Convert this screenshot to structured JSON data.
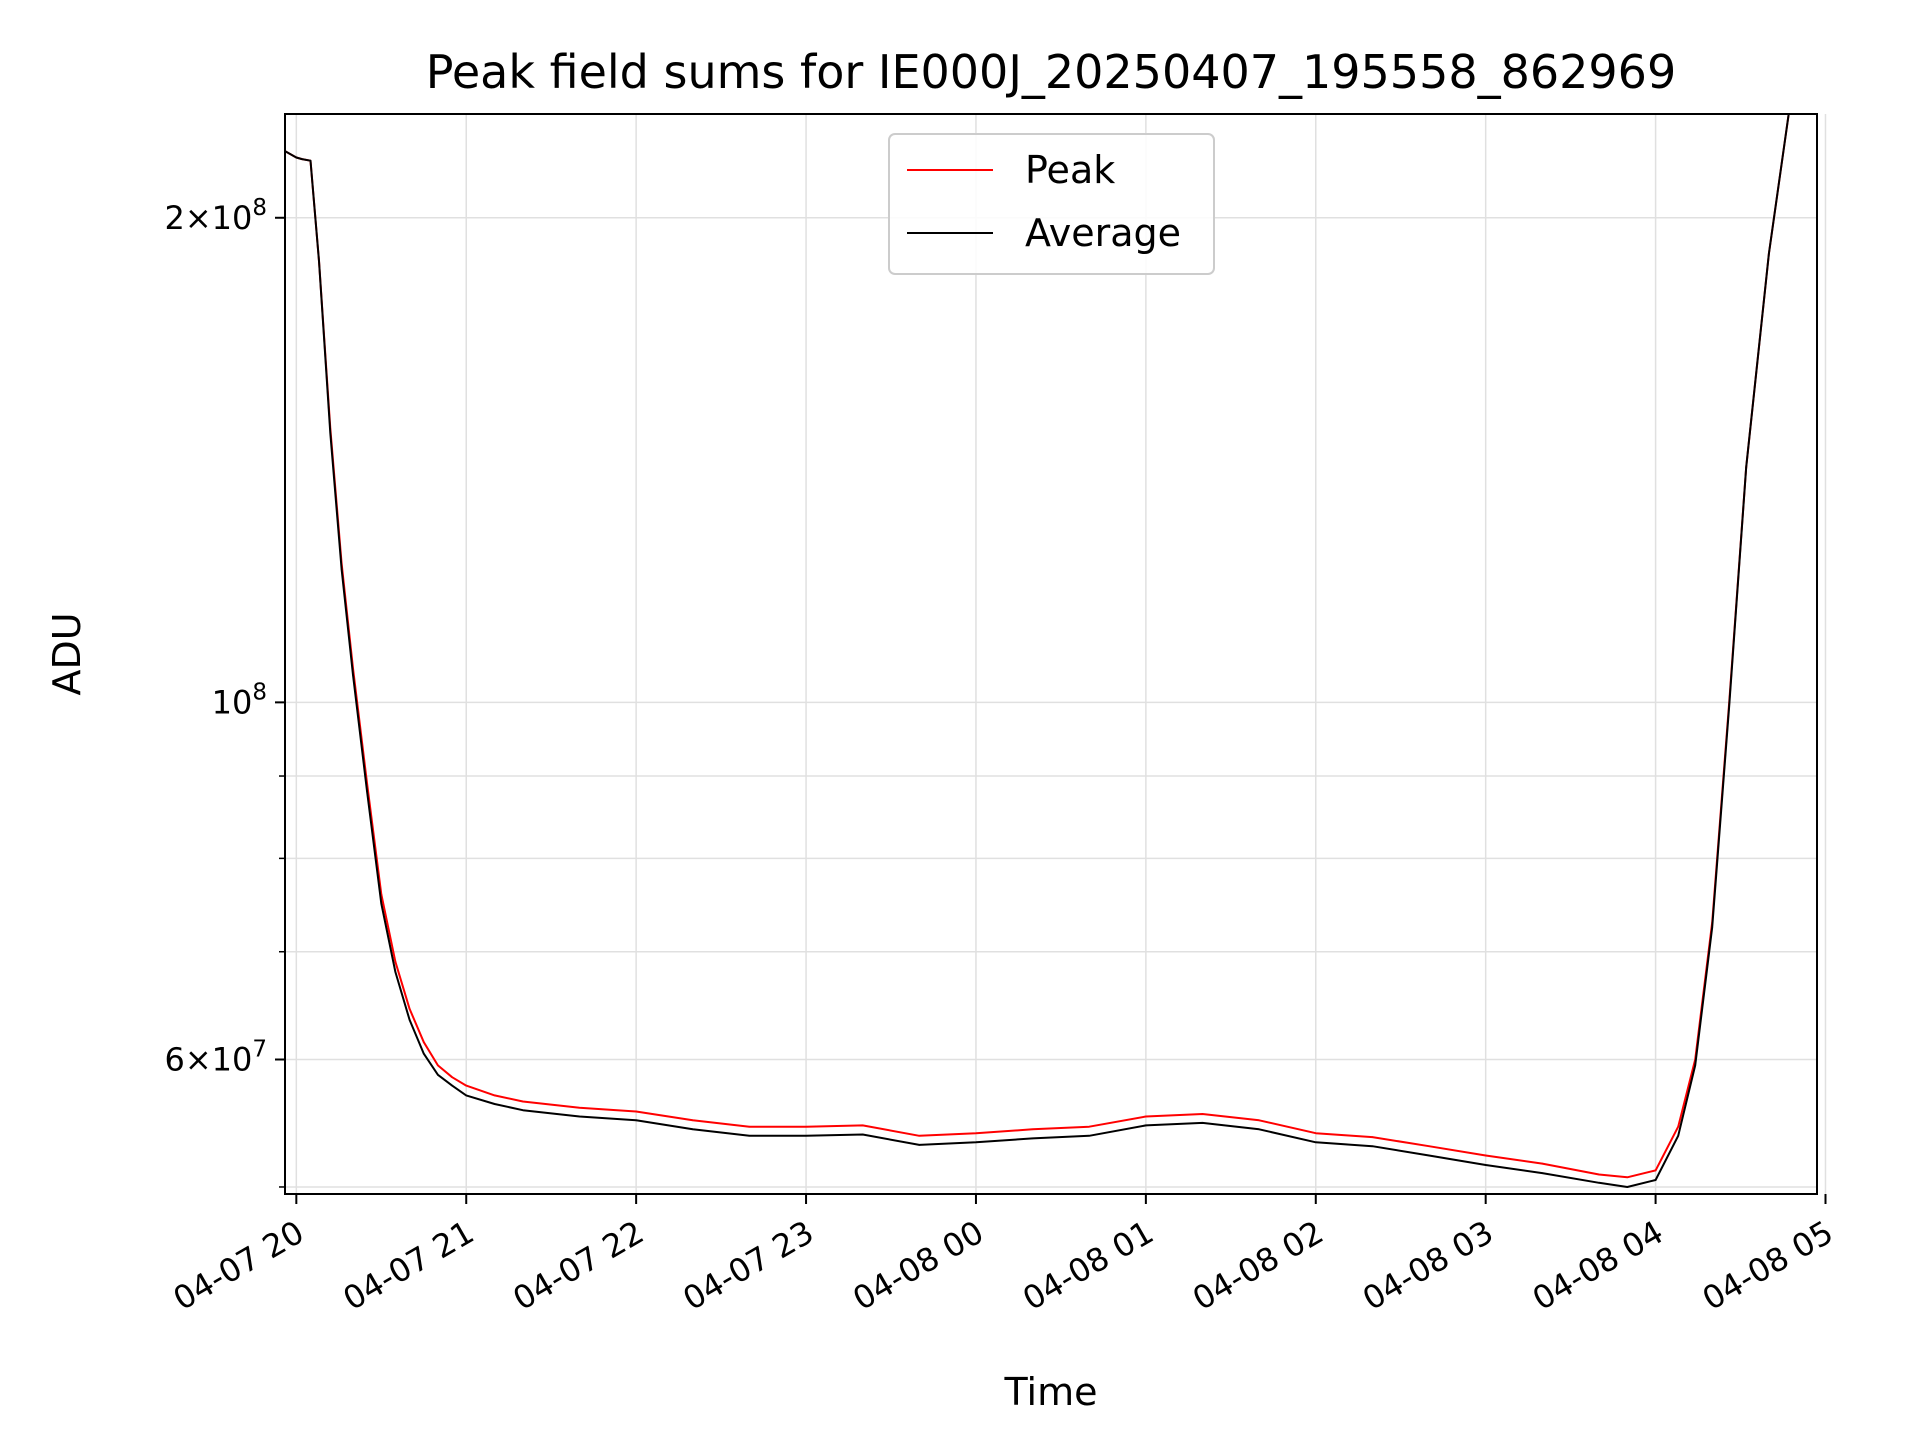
{
  "chart_data": {
    "type": "line",
    "title": "Peak field sums for IE000J_20250407_195558_862969",
    "xlabel": "Time",
    "ylabel": "ADU",
    "y_scale": "log",
    "ylim": [
      49500000,
      232000000
    ],
    "xlim": [
      "2025-04-07 19:56",
      "2025-04-08 04:57"
    ],
    "grid": true,
    "legend_position": "top-center",
    "x_ticks": [
      "04-07 20",
      "04-07 21",
      "04-07 22",
      "04-07 23",
      "04-08 00",
      "04-08 01",
      "04-08 02",
      "04-08 03",
      "04-08 04",
      "04-08 05"
    ],
    "y_ticks": [
      {
        "value": 200000000,
        "mantissa": "2",
        "exp": "8"
      },
      {
        "value": 100000000,
        "mantissa": "",
        "exp": "8"
      },
      {
        "value": 60000000,
        "mantissa": "6",
        "exp": "7"
      }
    ],
    "series": [
      {
        "name": "Peak",
        "color": "#ff0000",
        "x": [
          "2025-04-07 19:56",
          "2025-04-07 20:00",
          "2025-04-07 20:02",
          "2025-04-07 20:05",
          "2025-04-07 20:08",
          "2025-04-07 20:12",
          "2025-04-07 20:16",
          "2025-04-07 20:20",
          "2025-04-07 20:25",
          "2025-04-07 20:30",
          "2025-04-07 20:35",
          "2025-04-07 20:40",
          "2025-04-07 20:45",
          "2025-04-07 20:50",
          "2025-04-07 20:55",
          "2025-04-07 21:00",
          "2025-04-07 21:10",
          "2025-04-07 21:20",
          "2025-04-07 21:40",
          "2025-04-07 22:00",
          "2025-04-07 22:20",
          "2025-04-07 22:40",
          "2025-04-07 23:00",
          "2025-04-07 23:20",
          "2025-04-07 23:40",
          "2025-04-08 00:00",
          "2025-04-08 00:20",
          "2025-04-08 00:40",
          "2025-04-08 01:00",
          "2025-04-08 01:20",
          "2025-04-08 01:40",
          "2025-04-08 02:00",
          "2025-04-08 02:20",
          "2025-04-08 02:40",
          "2025-04-08 03:00",
          "2025-04-08 03:20",
          "2025-04-08 03:40",
          "2025-04-08 03:50",
          "2025-04-08 04:00",
          "2025-04-08 04:08",
          "2025-04-08 04:14",
          "2025-04-08 04:20",
          "2025-04-08 04:26",
          "2025-04-08 04:32",
          "2025-04-08 04:40",
          "2025-04-08 04:47"
        ],
        "y": [
          220000000,
          218000000,
          217500000,
          217000000,
          188000000,
          148000000,
          122000000,
          105000000,
          89000000,
          76000000,
          69000000,
          64500000,
          61500000,
          59500000,
          58500000,
          57800000,
          57000000,
          56500000,
          56000000,
          55700000,
          55000000,
          54500000,
          54500000,
          54600000,
          53800000,
          54000000,
          54300000,
          54500000,
          55300000,
          55500000,
          55000000,
          54000000,
          53700000,
          53000000,
          52300000,
          51700000,
          50900000,
          50700000,
          51200000,
          54500000,
          60000000,
          73000000,
          100000000,
          140000000,
          190000000,
          232000000
        ]
      },
      {
        "name": "Average",
        "color": "#000000",
        "x": [
          "2025-04-07 19:56",
          "2025-04-07 20:00",
          "2025-04-07 20:02",
          "2025-04-07 20:05",
          "2025-04-07 20:08",
          "2025-04-07 20:12",
          "2025-04-07 20:16",
          "2025-04-07 20:20",
          "2025-04-07 20:25",
          "2025-04-07 20:30",
          "2025-04-07 20:35",
          "2025-04-07 20:40",
          "2025-04-07 20:45",
          "2025-04-07 20:50",
          "2025-04-07 20:55",
          "2025-04-07 21:00",
          "2025-04-07 21:10",
          "2025-04-07 21:20",
          "2025-04-07 21:40",
          "2025-04-07 22:00",
          "2025-04-07 22:20",
          "2025-04-07 22:40",
          "2025-04-07 23:00",
          "2025-04-07 23:20",
          "2025-04-07 23:40",
          "2025-04-08 00:00",
          "2025-04-08 00:20",
          "2025-04-08 00:40",
          "2025-04-08 01:00",
          "2025-04-08 01:20",
          "2025-04-08 01:40",
          "2025-04-08 02:00",
          "2025-04-08 02:20",
          "2025-04-08 02:40",
          "2025-04-08 03:00",
          "2025-04-08 03:20",
          "2025-04-08 03:40",
          "2025-04-08 03:50",
          "2025-04-08 04:00",
          "2025-04-08 04:08",
          "2025-04-08 04:14",
          "2025-04-08 04:20",
          "2025-04-08 04:26",
          "2025-04-08 04:32",
          "2025-04-08 04:40",
          "2025-04-08 04:47"
        ],
        "y": [
          220000000,
          218000000,
          217500000,
          217000000,
          188000000,
          147000000,
          121000000,
          104000000,
          88000000,
          75000000,
          68000000,
          63500000,
          60500000,
          58700000,
          57800000,
          57000000,
          56300000,
          55800000,
          55300000,
          55000000,
          54300000,
          53800000,
          53800000,
          53900000,
          53100000,
          53300000,
          53600000,
          53800000,
          54600000,
          54800000,
          54300000,
          53300000,
          53000000,
          52300000,
          51600000,
          51000000,
          50300000,
          50000000,
          50500000,
          53800000,
          59500000,
          72500000,
          99500000,
          140000000,
          190000000,
          232000000
        ]
      }
    ]
  }
}
